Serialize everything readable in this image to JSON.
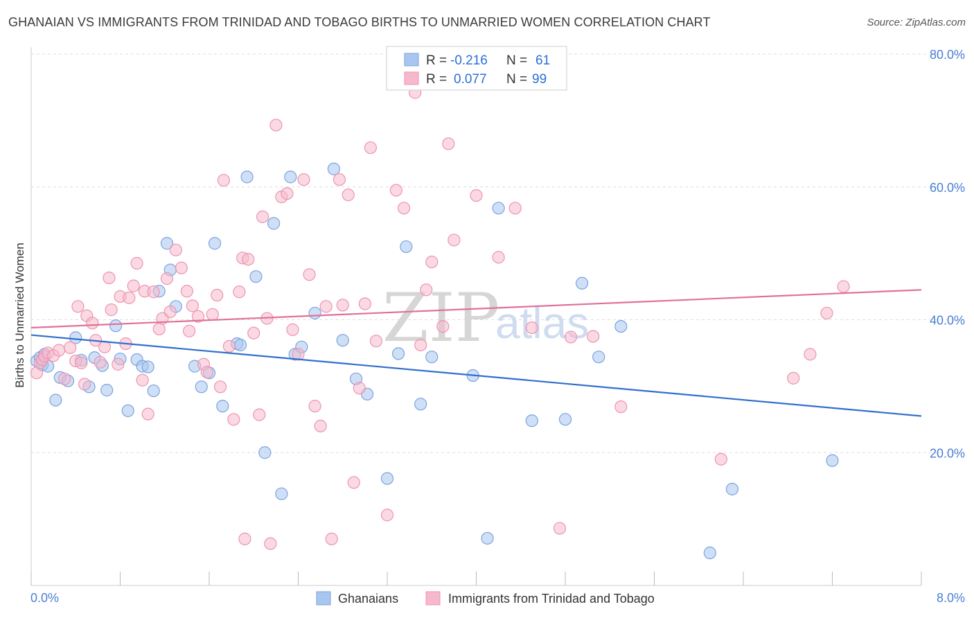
{
  "title": "GHANAIAN VS IMMIGRANTS FROM TRINIDAD AND TOBAGO BIRTHS TO UNMARRIED WOMEN CORRELATION CHART",
  "source": "Source: ZipAtlas.com",
  "watermark": {
    "zip": "ZIP",
    "atlas": "atlas"
  },
  "legend": {
    "rows": [
      {
        "r_label": "R =",
        "r_value": "-0.216",
        "n_label": "N =",
        "n_value": "61"
      },
      {
        "r_label": "R =",
        "r_value": "0.077",
        "n_label": "N =",
        "n_value": "99"
      }
    ]
  },
  "bottom_legend": [
    "Ghanaians",
    "Immigrants from Trinidad and Tobago"
  ],
  "colors": {
    "blue_fill": "#a8c6ef",
    "blue_stroke": "#7aa3e0",
    "blue_line": "#2f6fcf",
    "pink_fill": "#f6b9cc",
    "pink_stroke": "#ee93b0",
    "pink_line": "#e0709a",
    "grid": "#dddddd",
    "axis_label": "#4a7fd4"
  },
  "chart_data": {
    "type": "scatter",
    "title": "GHANAIAN VS IMMIGRANTS FROM TRINIDAD AND TOBAGO BIRTHS TO UNMARRIED WOMEN CORRELATION CHART",
    "xlabel": "",
    "ylabel": "Births to Unmarried Women",
    "xlim": [
      0,
      8
    ],
    "ylim": [
      0,
      80
    ],
    "x_tick_labels": [
      "0.0%",
      "8.0%"
    ],
    "y_ticks": [
      20,
      40,
      60,
      80
    ],
    "y_tick_labels": [
      "20.0%",
      "40.0%",
      "60.0%",
      "80.0%"
    ],
    "grid": true,
    "series": [
      {
        "name": "Ghanaians",
        "color": "#a8c6ef",
        "trend": {
          "x": [
            0,
            8
          ],
          "y": [
            37.7,
            25.5
          ]
        },
        "points": [
          [
            0.05,
            33.8
          ],
          [
            0.08,
            34.3
          ],
          [
            0.1,
            33.2
          ],
          [
            0.12,
            34.8
          ],
          [
            0.15,
            33.0
          ],
          [
            0.22,
            27.9
          ],
          [
            0.26,
            31.3
          ],
          [
            0.33,
            30.8
          ],
          [
            0.4,
            37.3
          ],
          [
            0.45,
            33.9
          ],
          [
            0.52,
            29.9
          ],
          [
            0.57,
            34.3
          ],
          [
            0.64,
            33.1
          ],
          [
            0.68,
            29.4
          ],
          [
            0.76,
            39.1
          ],
          [
            0.8,
            34.1
          ],
          [
            0.87,
            26.3
          ],
          [
            0.95,
            34.0
          ],
          [
            1.0,
            33.0
          ],
          [
            1.05,
            32.9
          ],
          [
            1.1,
            29.3
          ],
          [
            1.15,
            44.3
          ],
          [
            1.22,
            51.5
          ],
          [
            1.25,
            47.5
          ],
          [
            1.3,
            42.0
          ],
          [
            1.47,
            33.0
          ],
          [
            1.53,
            29.9
          ],
          [
            1.6,
            32.0
          ],
          [
            1.65,
            51.5
          ],
          [
            1.72,
            27.0
          ],
          [
            1.85,
            36.4
          ],
          [
            1.88,
            36.2
          ],
          [
            1.94,
            61.5
          ],
          [
            2.02,
            46.5
          ],
          [
            2.1,
            20.0
          ],
          [
            2.18,
            54.5
          ],
          [
            2.25,
            13.8
          ],
          [
            2.33,
            61.5
          ],
          [
            2.37,
            34.8
          ],
          [
            2.43,
            35.9
          ],
          [
            2.55,
            41.0
          ],
          [
            2.72,
            62.7
          ],
          [
            2.8,
            36.9
          ],
          [
            2.92,
            31.1
          ],
          [
            3.02,
            28.8
          ],
          [
            3.2,
            16.1
          ],
          [
            3.3,
            34.9
          ],
          [
            3.37,
            51.0
          ],
          [
            3.5,
            27.3
          ],
          [
            3.6,
            34.4
          ],
          [
            3.97,
            31.6
          ],
          [
            4.1,
            7.1
          ],
          [
            4.2,
            56.8
          ],
          [
            4.5,
            24.8
          ],
          [
            4.8,
            25.0
          ],
          [
            4.95,
            45.5
          ],
          [
            5.1,
            34.4
          ],
          [
            5.3,
            39.0
          ],
          [
            6.1,
            4.9
          ],
          [
            6.3,
            14.5
          ],
          [
            7.2,
            18.8
          ]
        ]
      },
      {
        "name": "Immigrants from Trinidad and Tobago",
        "color": "#f6b9cc",
        "trend": {
          "x": [
            0,
            8
          ],
          "y": [
            38.8,
            44.5
          ]
        },
        "points": [
          [
            0.05,
            32.0
          ],
          [
            0.08,
            33.5
          ],
          [
            0.1,
            34.0
          ],
          [
            0.12,
            34.5
          ],
          [
            0.15,
            35.0
          ],
          [
            0.2,
            34.6
          ],
          [
            0.25,
            35.4
          ],
          [
            0.3,
            31.1
          ],
          [
            0.35,
            35.8
          ],
          [
            0.4,
            33.8
          ],
          [
            0.42,
            42.0
          ],
          [
            0.45,
            33.5
          ],
          [
            0.48,
            30.3
          ],
          [
            0.5,
            40.6
          ],
          [
            0.55,
            39.5
          ],
          [
            0.58,
            36.9
          ],
          [
            0.62,
            33.6
          ],
          [
            0.66,
            35.9
          ],
          [
            0.7,
            46.3
          ],
          [
            0.72,
            41.5
          ],
          [
            0.78,
            33.3
          ],
          [
            0.8,
            43.5
          ],
          [
            0.85,
            36.4
          ],
          [
            0.88,
            43.3
          ],
          [
            0.92,
            45.1
          ],
          [
            0.95,
            48.5
          ],
          [
            1.0,
            30.9
          ],
          [
            1.02,
            44.3
          ],
          [
            1.05,
            25.8
          ],
          [
            1.1,
            44.2
          ],
          [
            1.15,
            38.6
          ],
          [
            1.18,
            40.2
          ],
          [
            1.22,
            46.2
          ],
          [
            1.25,
            41.2
          ],
          [
            1.3,
            50.5
          ],
          [
            1.35,
            47.8
          ],
          [
            1.4,
            44.3
          ],
          [
            1.42,
            38.3
          ],
          [
            1.45,
            42.1
          ],
          [
            1.5,
            40.5
          ],
          [
            1.55,
            33.3
          ],
          [
            1.58,
            32.1
          ],
          [
            1.63,
            40.8
          ],
          [
            1.67,
            43.7
          ],
          [
            1.7,
            29.9
          ],
          [
            1.73,
            61.0
          ],
          [
            1.78,
            36.0
          ],
          [
            1.82,
            25.0
          ],
          [
            1.87,
            44.2
          ],
          [
            1.9,
            49.3
          ],
          [
            1.92,
            7.0
          ],
          [
            1.95,
            49.1
          ],
          [
            2.0,
            38.0
          ],
          [
            2.05,
            25.7
          ],
          [
            2.08,
            55.5
          ],
          [
            2.12,
            40.2
          ],
          [
            2.15,
            6.3
          ],
          [
            2.2,
            69.3
          ],
          [
            2.25,
            58.5
          ],
          [
            2.3,
            59.0
          ],
          [
            2.35,
            38.5
          ],
          [
            2.4,
            34.8
          ],
          [
            2.45,
            61.1
          ],
          [
            2.5,
            46.8
          ],
          [
            2.55,
            27.0
          ],
          [
            2.6,
            24.0
          ],
          [
            2.65,
            42.0
          ],
          [
            2.7,
            7.0
          ],
          [
            2.77,
            61.1
          ],
          [
            2.8,
            42.2
          ],
          [
            2.85,
            58.8
          ],
          [
            2.9,
            15.5
          ],
          [
            2.95,
            29.7
          ],
          [
            3.0,
            42.4
          ],
          [
            3.05,
            65.9
          ],
          [
            3.1,
            36.8
          ],
          [
            3.2,
            10.6
          ],
          [
            3.28,
            59.5
          ],
          [
            3.35,
            56.8
          ],
          [
            3.45,
            74.2
          ],
          [
            3.5,
            36.2
          ],
          [
            3.55,
            44.5
          ],
          [
            3.6,
            48.7
          ],
          [
            3.7,
            39.0
          ],
          [
            3.75,
            66.5
          ],
          [
            3.8,
            52.0
          ],
          [
            4.0,
            58.7
          ],
          [
            4.2,
            49.4
          ],
          [
            4.35,
            56.8
          ],
          [
            4.5,
            38.8
          ],
          [
            4.75,
            8.6
          ],
          [
            4.85,
            37.4
          ],
          [
            5.05,
            37.5
          ],
          [
            5.3,
            26.9
          ],
          [
            6.2,
            19.0
          ],
          [
            6.85,
            31.2
          ],
          [
            7.0,
            34.8
          ],
          [
            7.15,
            41.0
          ],
          [
            7.3,
            45.0
          ]
        ]
      }
    ]
  }
}
